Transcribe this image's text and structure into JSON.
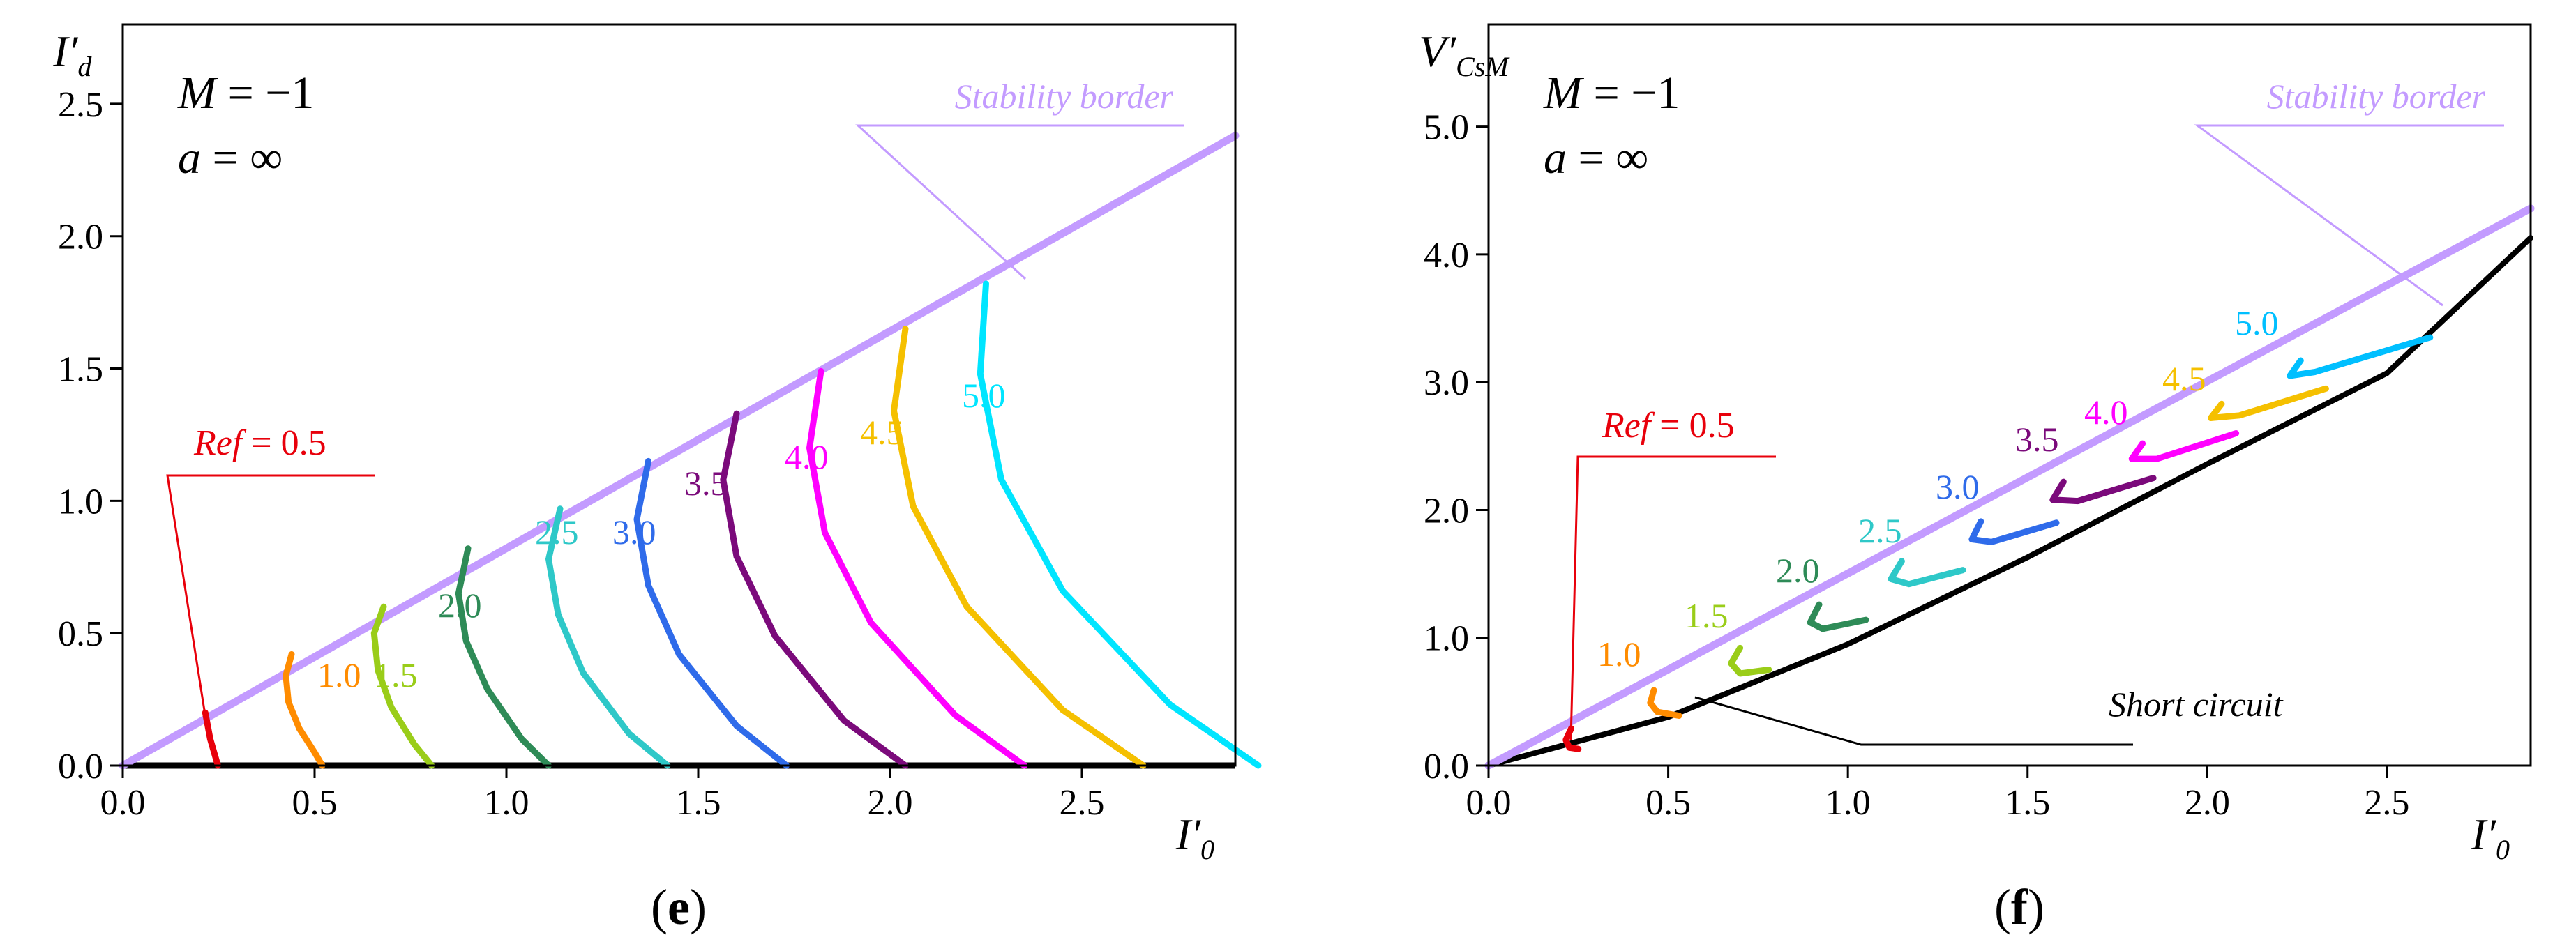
{
  "chart_data": [
    {
      "panel": "e",
      "panel_label": {
        "open": "(",
        "letter": "e",
        "close": ")"
      },
      "type": "line",
      "x_axis": {
        "label_main": "I′",
        "label_sub": "0",
        "lim": [
          0,
          2.9
        ],
        "ticks": [
          0.0,
          0.5,
          1.0,
          1.5,
          2.0,
          2.5
        ],
        "tick_labels": [
          "0.0",
          "0.5",
          "1.0",
          "1.5",
          "2.0",
          "2.5"
        ]
      },
      "y_axis": {
        "label_main": "I′",
        "label_sub": "d",
        "lim": [
          0,
          2.8
        ],
        "ticks": [
          0.0,
          0.5,
          1.0,
          1.5,
          2.0,
          2.5
        ],
        "tick_labels": [
          "0.0",
          "0.5",
          "1.0",
          "1.5",
          "2.0",
          "2.5"
        ]
      },
      "params": {
        "m_var": "M",
        "m_eq": " = −1",
        "a_var": "a",
        "a_eq": " = ∞"
      },
      "callouts": {
        "stability": {
          "text": "Stability border",
          "color": "#c39bff"
        },
        "ref": {
          "ref_var": "Ref",
          "ref_eq": " = 0.5",
          "color": "#e8000b"
        }
      },
      "stability_border": {
        "x": [
          0.0,
          2.9
        ],
        "y": [
          0.0,
          2.38
        ]
      },
      "baseline": {
        "x": [
          0.0,
          2.9
        ],
        "y": [
          0.0,
          0.0
        ]
      },
      "series": [
        {
          "name": "0.5",
          "color": "#e8000b",
          "x": [
            0.215,
            0.228,
            0.248
          ],
          "y": [
            0.2,
            0.1,
            0.0
          ]
        },
        {
          "name": "1.0",
          "color": "#ff8c00",
          "label": "1.0",
          "x": [
            0.44,
            0.425,
            0.432,
            0.46,
            0.5,
            0.52
          ],
          "y": [
            0.42,
            0.34,
            0.24,
            0.14,
            0.05,
            0.0
          ]
        },
        {
          "name": "1.5",
          "color": "#9acd19",
          "label": "1.5",
          "x": [
            0.68,
            0.655,
            0.665,
            0.7,
            0.76,
            0.805
          ],
          "y": [
            0.6,
            0.5,
            0.36,
            0.22,
            0.08,
            0.0
          ]
        },
        {
          "name": "2.0",
          "color": "#2e8b57",
          "label": "2.0",
          "x": [
            0.9,
            0.875,
            0.895,
            0.95,
            1.04,
            1.11
          ],
          "y": [
            0.82,
            0.65,
            0.47,
            0.29,
            0.1,
            0.0
          ]
        },
        {
          "name": "2.5",
          "color": "#2ec8c8",
          "label": "2.5",
          "x": [
            1.14,
            1.11,
            1.135,
            1.2,
            1.32,
            1.42
          ],
          "y": [
            0.97,
            0.78,
            0.57,
            0.35,
            0.12,
            0.0
          ]
        },
        {
          "name": "3.0",
          "color": "#2f6bea",
          "label": "3.0",
          "x": [
            1.37,
            1.34,
            1.37,
            1.45,
            1.6,
            1.73
          ],
          "y": [
            1.15,
            0.93,
            0.68,
            0.42,
            0.15,
            0.0
          ]
        },
        {
          "name": "3.5",
          "color": "#7b0a7b",
          "label": "3.5",
          "x": [
            1.6,
            1.565,
            1.6,
            1.7,
            1.88,
            2.04
          ],
          "y": [
            1.33,
            1.08,
            0.79,
            0.49,
            0.17,
            0.0
          ]
        },
        {
          "name": "4.0",
          "color": "#ff00ff",
          "label": "4.0",
          "x": [
            1.82,
            1.79,
            1.83,
            1.95,
            2.17,
            2.35
          ],
          "y": [
            1.49,
            1.2,
            0.88,
            0.54,
            0.19,
            0.0
          ]
        },
        {
          "name": "4.5",
          "color": "#f5c000",
          "label": "4.5",
          "x": [
            2.04,
            2.01,
            2.06,
            2.2,
            2.45,
            2.66
          ],
          "y": [
            1.65,
            1.34,
            0.98,
            0.6,
            0.21,
            0.0
          ]
        },
        {
          "name": "5.0",
          "color": "#00e5ff",
          "label": "5.0",
          "x": [
            2.25,
            2.235,
            2.29,
            2.45,
            2.73,
            2.96
          ],
          "y": [
            1.82,
            1.48,
            1.08,
            0.66,
            0.23,
            0.0
          ]
        }
      ]
    },
    {
      "panel": "f",
      "panel_label": {
        "open": "(",
        "letter": "f",
        "close": ")"
      },
      "type": "line",
      "x_axis": {
        "label_main": "I′",
        "label_sub": "0",
        "lim": [
          0,
          2.9
        ],
        "ticks": [
          0.0,
          0.5,
          1.0,
          1.5,
          2.0,
          2.5
        ],
        "tick_labels": [
          "0.0",
          "0.5",
          "1.0",
          "1.5",
          "2.0",
          "2.5"
        ]
      },
      "y_axis": {
        "label_main": "V′",
        "label_sub": "CsM",
        "lim": [
          0,
          5.8
        ],
        "ticks": [
          0.0,
          1.0,
          2.0,
          3.0,
          4.0,
          5.0
        ],
        "tick_labels": [
          "0.0",
          "1.0",
          "2.0",
          "3.0",
          "4.0",
          "5.0"
        ]
      },
      "params": {
        "m_var": "M",
        "m_eq": " = −1",
        "a_var": "a",
        "a_eq": " = ∞"
      },
      "callouts": {
        "stability": {
          "text": "Stability border",
          "color": "#c39bff"
        },
        "ref": {
          "ref_var": "Ref",
          "ref_eq": " = 0.5",
          "color": "#e8000b"
        },
        "short_circuit": {
          "text": "Short circuit",
          "color": "#000000"
        }
      },
      "stability_border": {
        "x": [
          0.0,
          2.9
        ],
        "y": [
          0.0,
          4.36
        ]
      },
      "short_circuit_curve": {
        "x": [
          0.0,
          0.5,
          1.0,
          1.5,
          2.0,
          2.5,
          2.9
        ],
        "y": [
          0.0,
          0.38,
          0.95,
          1.63,
          2.36,
          3.07,
          4.13
        ]
      },
      "series": [
        {
          "name": "0.5",
          "color": "#e8000b",
          "x": [
            0.23,
            0.215,
            0.225,
            0.25
          ],
          "y": [
            0.29,
            0.2,
            0.14,
            0.13
          ]
        },
        {
          "name": "1.0",
          "color": "#ff8c00",
          "label": "1.0",
          "x": [
            0.46,
            0.45,
            0.47,
            0.53
          ],
          "y": [
            0.59,
            0.49,
            0.42,
            0.39
          ]
        },
        {
          "name": "1.5",
          "color": "#9acd19",
          "label": "1.5",
          "x": [
            0.7,
            0.675,
            0.7,
            0.78
          ],
          "y": [
            0.92,
            0.8,
            0.72,
            0.75
          ]
        },
        {
          "name": "2.0",
          "color": "#2e8b57",
          "label": "2.0",
          "x": [
            0.92,
            0.895,
            0.93,
            1.05
          ],
          "y": [
            1.26,
            1.12,
            1.07,
            1.14
          ]
        },
        {
          "name": "2.5",
          "color": "#2ec8c8",
          "label": "2.5",
          "x": [
            1.15,
            1.12,
            1.17,
            1.32
          ],
          "y": [
            1.6,
            1.46,
            1.42,
            1.53
          ]
        },
        {
          "name": "3.0",
          "color": "#2f6bea",
          "label": "3.0",
          "x": [
            1.37,
            1.345,
            1.4,
            1.58
          ],
          "y": [
            1.91,
            1.77,
            1.75,
            1.9
          ]
        },
        {
          "name": "3.5",
          "color": "#7b0a7b",
          "label": "3.5",
          "x": [
            1.6,
            1.57,
            1.64,
            1.85
          ],
          "y": [
            2.22,
            2.08,
            2.07,
            2.25
          ]
        },
        {
          "name": "4.0",
          "color": "#ff00ff",
          "label": "4.0",
          "x": [
            1.82,
            1.79,
            1.86,
            2.08
          ],
          "y": [
            2.52,
            2.4,
            2.4,
            2.6
          ]
        },
        {
          "name": "4.5",
          "color": "#f5c000",
          "label": "4.5",
          "x": [
            2.04,
            2.01,
            2.09,
            2.33
          ],
          "y": [
            2.83,
            2.72,
            2.74,
            2.95
          ]
        },
        {
          "name": "5.0",
          "color": "#00bfff",
          "label": "5.0",
          "x": [
            2.26,
            2.23,
            2.3,
            2.62
          ],
          "y": [
            3.17,
            3.05,
            3.08,
            3.35
          ]
        }
      ]
    }
  ]
}
